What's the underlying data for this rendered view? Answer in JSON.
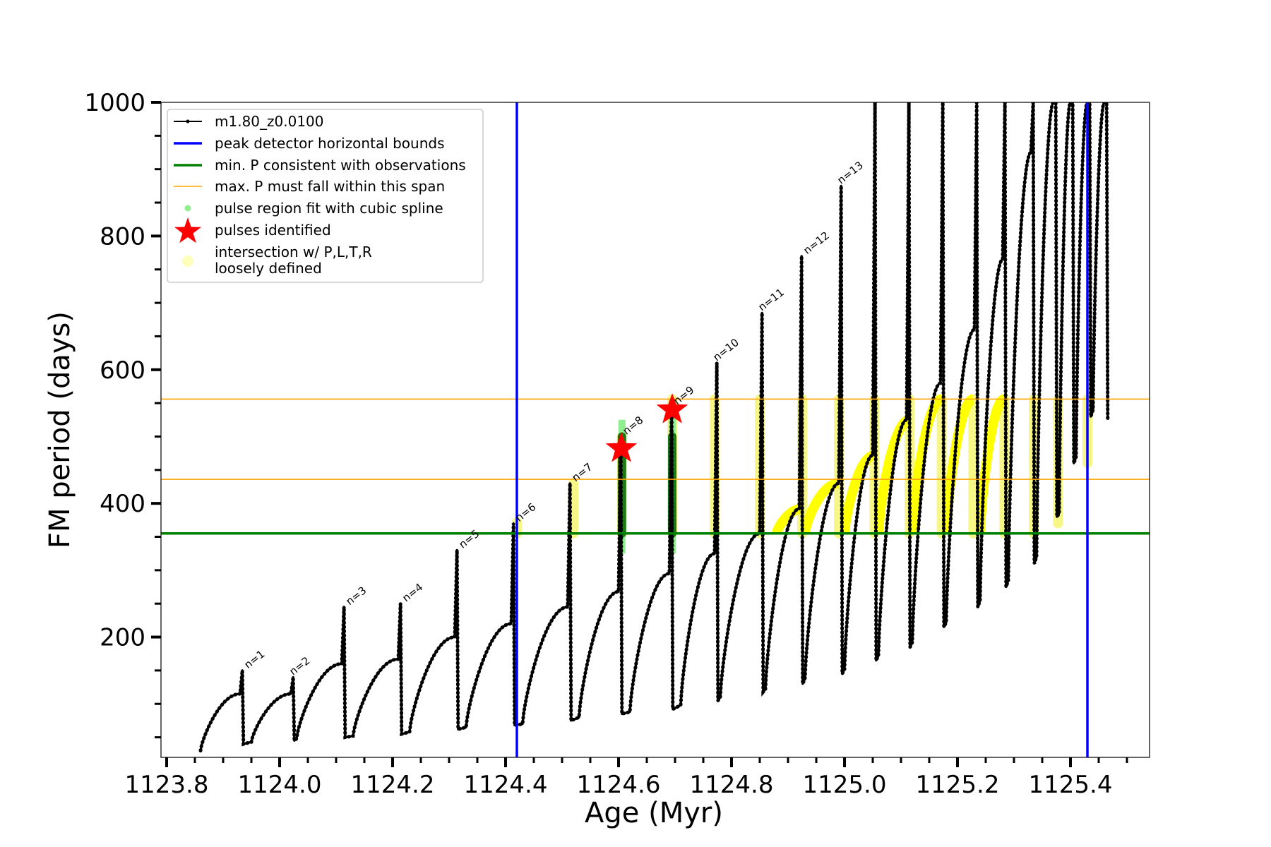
{
  "chart_data": {
    "type": "line",
    "title": "",
    "xlabel": "Age (Myr)",
    "ylabel": "FM period (days)",
    "xlim": [
      1123.79,
      1125.54
    ],
    "ylim": [
      20,
      1000
    ],
    "x_ticks": [
      1123.8,
      1124.0,
      1124.2,
      1124.4,
      1124.6,
      1124.8,
      1125.0,
      1125.2,
      1125.4
    ],
    "x_tick_labels": [
      "1123.8",
      "1124.0",
      "1124.2",
      "1124.4",
      "1124.6",
      "1124.8",
      "1125.0",
      "1125.2",
      "1125.4"
    ],
    "y_ticks": [
      200,
      400,
      600,
      800,
      1000
    ],
    "y_tick_labels": [
      "200",
      "400",
      "600",
      "800",
      "1000"
    ],
    "grid": false,
    "legend_position": "top-left",
    "legend": [
      {
        "label": "m1.80_z0.0100",
        "style": "line-dot",
        "color": "#000000"
      },
      {
        "label": "peak detector horizontal bounds",
        "style": "line",
        "color": "#0000ff"
      },
      {
        "label": "min. P consistent with observations",
        "style": "line",
        "color": "#008000"
      },
      {
        "label": "max. P must fall within this span",
        "style": "thin-line",
        "color": "#ffa500"
      },
      {
        "label": "pulse region fit with cubic spline",
        "style": "dot",
        "color": "#90ee90"
      },
      {
        "label": "pulses identified",
        "style": "star",
        "color": "#ff0000"
      },
      {
        "label": "intersection w/ P,L,T,R",
        "label2": "loosely defined",
        "style": "circle",
        "color": "#ffffa0"
      }
    ],
    "vertical_lines": [
      {
        "x": 1124.42,
        "color": "#0000ff",
        "role": "peak detector horizontal bounds"
      },
      {
        "x": 1125.43,
        "color": "#0000ff",
        "role": "peak detector horizontal bounds"
      }
    ],
    "horizontal_lines": [
      {
        "y": 355,
        "color": "#008000",
        "role": "min. P consistent with observations"
      },
      {
        "y": 436,
        "color": "#ffa500",
        "role": "max. P must fall within this span"
      },
      {
        "y": 556,
        "color": "#ffa500",
        "role": "max. P must fall within this span"
      }
    ],
    "series": [
      {
        "name": "m1.80_z0.0100",
        "color": "#000000",
        "pulses": [
          {
            "x0": 1123.86,
            "y0": 30,
            "x_peak": 1123.93,
            "y_peak": 115,
            "y_top": 150,
            "y_dip": 40
          },
          {
            "x0": 1123.95,
            "y0": 43,
            "x_peak": 1124.02,
            "y_peak": 115,
            "y_top": 140,
            "y_dip": 45
          },
          {
            "x0": 1124.03,
            "y0": 48,
            "x_peak": 1124.11,
            "y_peak": 160,
            "y_top": 245,
            "y_dip": 50
          },
          {
            "x0": 1124.13,
            "y0": 52,
            "x_peak": 1124.21,
            "y_peak": 167,
            "y_top": 250,
            "y_dip": 55
          },
          {
            "x0": 1124.23,
            "y0": 58,
            "x_peak": 1124.31,
            "y_peak": 200,
            "y_top": 330,
            "y_dip": 62
          },
          {
            "x0": 1124.33,
            "y0": 65,
            "x_peak": 1124.41,
            "y_peak": 220,
            "y_top": 370,
            "y_dip": 68
          },
          {
            "x0": 1124.43,
            "y0": 70,
            "x_peak": 1124.51,
            "y_peak": 245,
            "y_top": 430,
            "y_dip": 75
          },
          {
            "x0": 1124.53,
            "y0": 80,
            "x_peak": 1124.6,
            "y_peak": 268,
            "y_top": 500,
            "y_dip": 85
          },
          {
            "x0": 1124.62,
            "y0": 88,
            "x_peak": 1124.69,
            "y_peak": 295,
            "y_top": 540,
            "y_dip": 92
          },
          {
            "x0": 1124.71,
            "y0": 98,
            "x_peak": 1124.77,
            "y_peak": 325,
            "y_top": 610,
            "y_dip": 105
          },
          {
            "x0": 1124.78,
            "y0": 110,
            "x_peak": 1124.85,
            "y_peak": 355,
            "y_top": 685,
            "y_dip": 118
          },
          {
            "x0": 1124.86,
            "y0": 122,
            "x_peak": 1124.92,
            "y_peak": 392,
            "y_top": 770,
            "y_dip": 130
          },
          {
            "x0": 1124.93,
            "y0": 138,
            "x_peak": 1124.99,
            "y_peak": 430,
            "y_top": 875,
            "y_dip": 145
          },
          {
            "x0": 1125.0,
            "y0": 152,
            "x_peak": 1125.05,
            "y_peak": 472,
            "y_top": 1000,
            "y_dip": 165
          },
          {
            "x0": 1125.06,
            "y0": 172,
            "x_peak": 1125.11,
            "y_peak": 525,
            "y_top": 1000,
            "y_dip": 185
          },
          {
            "x0": 1125.12,
            "y0": 192,
            "x_peak": 1125.17,
            "y_peak": 580,
            "y_top": 1000,
            "y_dip": 215
          },
          {
            "x0": 1125.18,
            "y0": 222,
            "x_peak": 1125.23,
            "y_peak": 660,
            "y_top": 1000,
            "y_dip": 245
          },
          {
            "x0": 1125.24,
            "y0": 255,
            "x_peak": 1125.28,
            "y_peak": 765,
            "y_top": 1000,
            "y_dip": 275
          },
          {
            "x0": 1125.29,
            "y0": 285,
            "x_peak": 1125.33,
            "y_peak": 925,
            "y_top": 1000,
            "y_dip": 310
          },
          {
            "x0": 1125.34,
            "y0": 320,
            "x_peak": 1125.37,
            "y_peak": 1000,
            "y_top": 1000,
            "y_dip": 380
          },
          {
            "x0": 1125.38,
            "y0": 385,
            "x_peak": 1125.4,
            "y_peak": 1000,
            "y_top": 1000,
            "y_dip": 460
          },
          {
            "x0": 1125.41,
            "y0": 470,
            "x_peak": 1125.43,
            "y_peak": 1000,
            "y_top": 1000,
            "y_dip": 530
          },
          {
            "x0": 1125.44,
            "y0": 540,
            "x_peak": 1125.46,
            "y_peak": 1000,
            "y_top": 1000,
            "y_dip": 525
          }
        ]
      }
    ],
    "annotations": [
      {
        "text": "n=1",
        "x": 1123.94,
        "y": 150
      },
      {
        "text": "n=2",
        "x": 1124.02,
        "y": 140
      },
      {
        "text": "n=3",
        "x": 1124.12,
        "y": 245
      },
      {
        "text": "n=4",
        "x": 1124.22,
        "y": 250
      },
      {
        "text": "n=5",
        "x": 1124.32,
        "y": 330
      },
      {
        "text": "n=6",
        "x": 1124.42,
        "y": 370
      },
      {
        "text": "n=7",
        "x": 1124.52,
        "y": 430
      },
      {
        "text": "n=8",
        "x": 1124.61,
        "y": 500
      },
      {
        "text": "n=9",
        "x": 1124.7,
        "y": 545
      },
      {
        "text": "n=10",
        "x": 1124.77,
        "y": 610
      },
      {
        "text": "n=11",
        "x": 1124.85,
        "y": 685
      },
      {
        "text": "n=12",
        "x": 1124.93,
        "y": 770
      },
      {
        "text": "n=13",
        "x": 1124.99,
        "y": 875
      }
    ],
    "pulses_identified": [
      {
        "x": 1124.605,
        "y": 482
      },
      {
        "x": 1124.695,
        "y": 540
      }
    ],
    "spline_regions": [
      {
        "x": 1124.606,
        "y_min": 325,
        "y_max": 525
      },
      {
        "x": 1124.695,
        "y_min": 325,
        "y_max": 555
      }
    ],
    "yellow_vertical_bands": [
      {
        "x": 1124.42,
        "y_min": 355,
        "y_max": 372
      },
      {
        "x": 1124.52,
        "y_min": 355,
        "y_max": 430
      },
      {
        "x": 1124.606,
        "y_min": 355,
        "y_max": 500
      },
      {
        "x": 1124.695,
        "y_min": 355,
        "y_max": 556
      },
      {
        "x": 1124.77,
        "y_min": 355,
        "y_max": 556
      },
      {
        "x": 1124.85,
        "y_min": 355,
        "y_max": 556
      },
      {
        "x": 1124.925,
        "y_min": 355,
        "y_max": 556
      },
      {
        "x": 1124.99,
        "y_min": 355,
        "y_max": 556
      },
      {
        "x": 1125.053,
        "y_min": 355,
        "y_max": 556
      },
      {
        "x": 1125.115,
        "y_min": 355,
        "y_max": 556
      },
      {
        "x": 1125.172,
        "y_min": 355,
        "y_max": 556
      },
      {
        "x": 1125.228,
        "y_min": 355,
        "y_max": 556
      },
      {
        "x": 1125.283,
        "y_min": 355,
        "y_max": 556
      },
      {
        "x": 1125.335,
        "y_min": 355,
        "y_max": 556
      },
      {
        "x": 1125.378,
        "y_min": 370,
        "y_max": 556
      },
      {
        "x": 1125.43,
        "y_min": 460,
        "y_max": 556
      }
    ],
    "yellow_arcs": [
      {
        "x0": 1124.88,
        "x1": 1124.925,
        "y_peak": 392
      },
      {
        "x0": 1124.93,
        "x1": 1124.99,
        "y_peak": 430
      },
      {
        "x0": 1125.0,
        "x1": 1125.053,
        "y_peak": 472
      },
      {
        "x0": 1125.06,
        "x1": 1125.115,
        "y_peak": 525
      },
      {
        "x0": 1125.12,
        "x1": 1125.172,
        "y_peak": 556
      },
      {
        "x0": 1125.18,
        "x1": 1125.228,
        "y_peak": 556
      },
      {
        "x0": 1125.24,
        "x1": 1125.283,
        "y_peak": 556
      }
    ]
  }
}
